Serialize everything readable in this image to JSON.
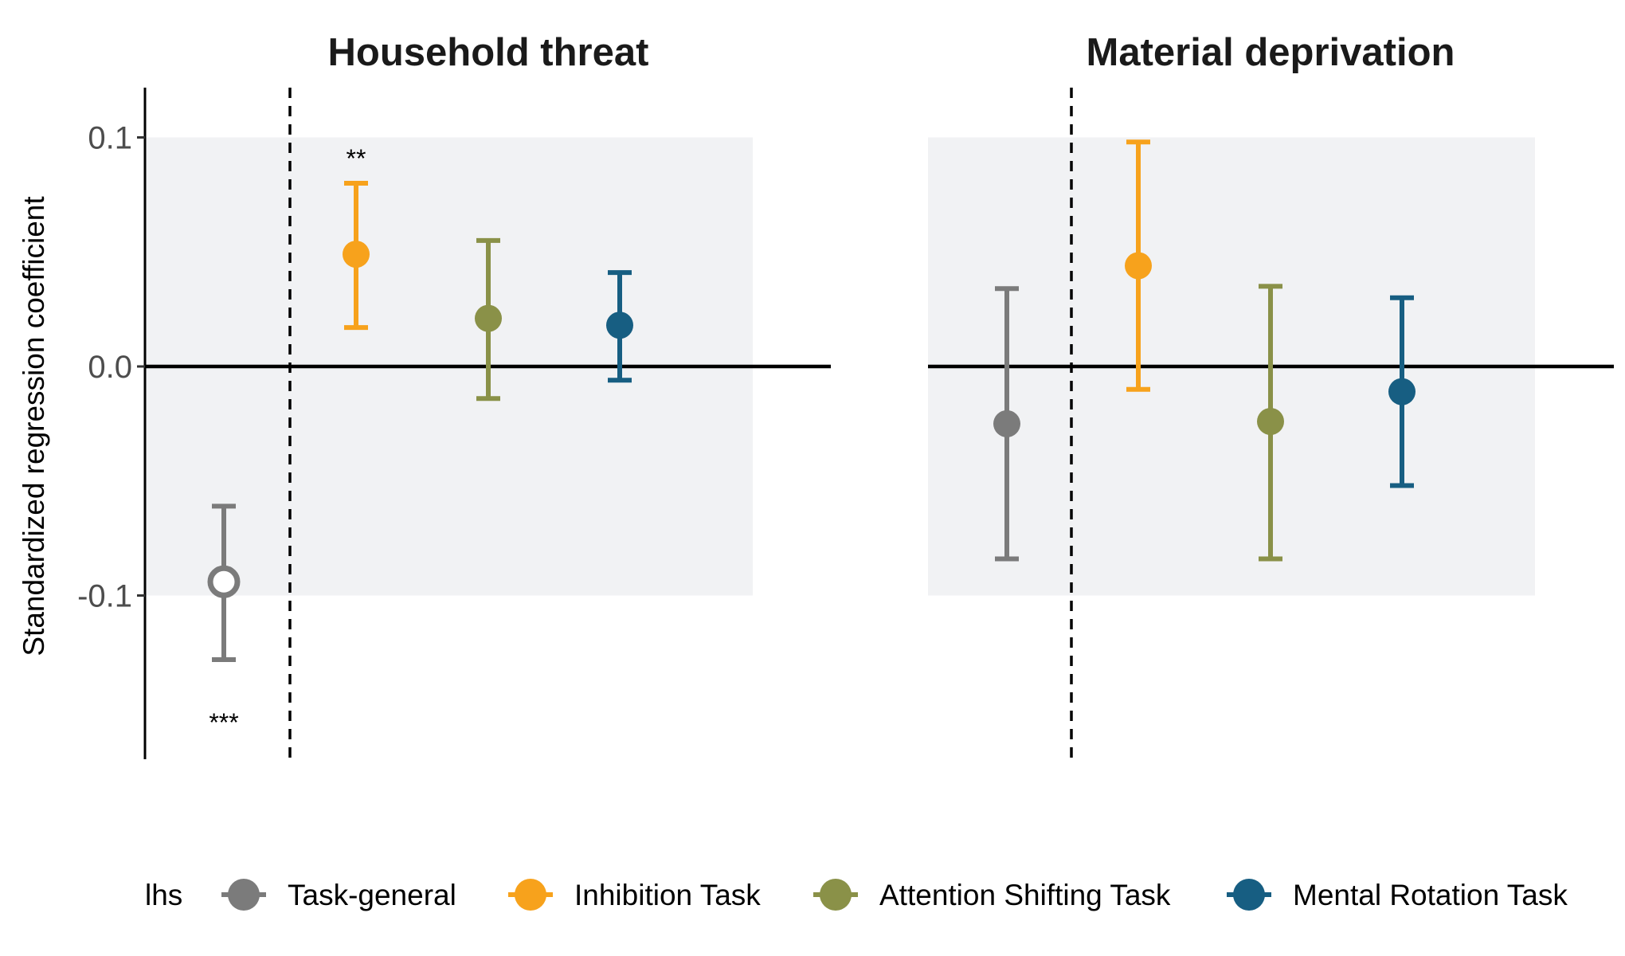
{
  "chart_data": {
    "type": "scatter",
    "subtype": "point-range (coefficient with error bars)",
    "ylabel": "Standardized regression coefficient",
    "ylim": [
      -0.17,
      0.12
    ],
    "yticks": [
      -0.1,
      0.0,
      0.1
    ],
    "ytick_labels": [
      "-0.1",
      "0.0",
      "0.1"
    ],
    "grid": false,
    "reference_line_y": 0.0,
    "shaded_band_y": [
      -0.1,
      0.1
    ],
    "shaded_band_color": "#f1f2f4",
    "legend": {
      "title": "lhs",
      "placement": "bottom",
      "entries": [
        {
          "label": "Task-general",
          "color": "#7b7b7b"
        },
        {
          "label": "Inhibition Task",
          "color": "#f7a21c"
        },
        {
          "label": "Attention Shifting Task",
          "color": "#8a9148"
        },
        {
          "label": "Mental Rotation Task",
          "color": "#175e82"
        }
      ]
    },
    "panels": [
      {
        "title": "Household threat",
        "points": [
          {
            "series": "Task-general",
            "estimate": -0.094,
            "lower": -0.128,
            "upper": -0.061,
            "significance": "***",
            "hollow": true
          },
          {
            "series": "Inhibition Task",
            "estimate": 0.049,
            "lower": 0.017,
            "upper": 0.08,
            "significance": "**",
            "hollow": false
          },
          {
            "series": "Attention Shifting Task",
            "estimate": 0.021,
            "lower": -0.014,
            "upper": 0.055,
            "significance": "",
            "hollow": false
          },
          {
            "series": "Mental Rotation Task",
            "estimate": 0.018,
            "lower": -0.006,
            "upper": 0.041,
            "significance": "",
            "hollow": false
          }
        ]
      },
      {
        "title": "Material deprivation",
        "points": [
          {
            "series": "Task-general",
            "estimate": -0.025,
            "lower": -0.084,
            "upper": 0.034,
            "significance": "",
            "hollow": false
          },
          {
            "series": "Inhibition Task",
            "estimate": 0.044,
            "lower": -0.01,
            "upper": 0.098,
            "significance": "",
            "hollow": false
          },
          {
            "series": "Attention Shifting Task",
            "estimate": -0.024,
            "lower": -0.084,
            "upper": 0.035,
            "significance": "",
            "hollow": false
          },
          {
            "series": "Mental Rotation Task",
            "estimate": -0.011,
            "lower": -0.052,
            "upper": 0.03,
            "significance": "",
            "hollow": false
          }
        ]
      }
    ]
  }
}
